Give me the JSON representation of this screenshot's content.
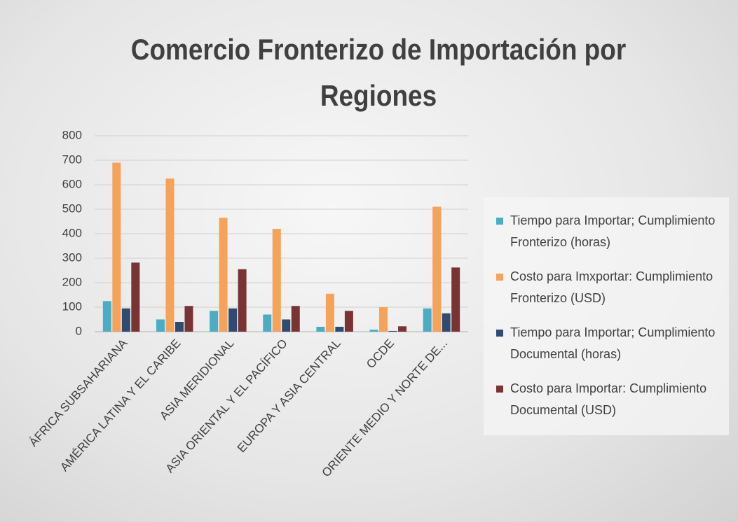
{
  "chart_data": {
    "type": "bar",
    "title": "Comercio Fronterizo de Importación por Regiones",
    "categories": [
      "ÁFRICA SUBSAHARIANA",
      "AMÉRICA LATINA Y EL CARIBE",
      "ASIA MERIDIONAL",
      "ASIA ORIENTAL Y EL PACÍFICO",
      "EUROPA Y ASIA CENTRAL",
      "OCDE",
      "ORIENTE MEDIO Y NORTE DE..."
    ],
    "series": [
      {
        "name": "Tiempo para Importar; Cumplimiento Fronterizo  (horas)",
        "color": "#4bacc6",
        "values": [
          125,
          50,
          85,
          70,
          20,
          8,
          95
        ]
      },
      {
        "name": "Costo para Imxportar: Cumplimiento Fronterizo (USD)",
        "color": "#f5a25a",
        "values": [
          690,
          625,
          465,
          420,
          155,
          100,
          510
        ]
      },
      {
        "name": "Tiempo para Importar; Cumplimiento Documental  (horas)",
        "color": "#2f4b72",
        "values": [
          95,
          40,
          95,
          50,
          20,
          3,
          75
        ]
      },
      {
        "name": "Costo para Importar: Cumplimiento Documental (USD)",
        "color": "#7a3333",
        "values": [
          282,
          105,
          255,
          105,
          85,
          22,
          262
        ]
      }
    ],
    "ylim": [
      0,
      800
    ],
    "yticks": [
      0,
      100,
      200,
      300,
      400,
      500,
      600,
      700,
      800
    ],
    "grid": true,
    "legend": "right"
  }
}
